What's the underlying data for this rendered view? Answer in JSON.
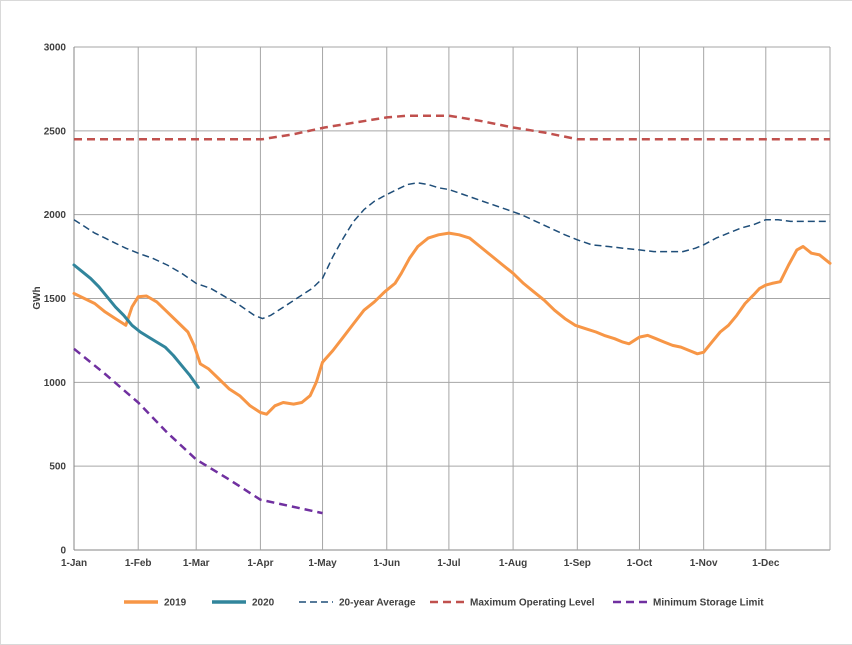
{
  "chart_data": {
    "type": "line",
    "ylabel": "GWh",
    "ylim": [
      0,
      3000
    ],
    "yticks": [
      "0",
      "500",
      "1000",
      "1500",
      "2000",
      "2500",
      "3000"
    ],
    "xlim": [
      0,
      365
    ],
    "xticks": [
      {
        "label": "1-Jan",
        "day": 0
      },
      {
        "label": "1-Feb",
        "day": 31
      },
      {
        "label": "1-Mar",
        "day": 59
      },
      {
        "label": "1-Apr",
        "day": 90
      },
      {
        "label": "1-May",
        "day": 120
      },
      {
        "label": "1-Jun",
        "day": 151
      },
      {
        "label": "1-Jul",
        "day": 181
      },
      {
        "label": "1-Aug",
        "day": 212
      },
      {
        "label": "1-Sep",
        "day": 243
      },
      {
        "label": "1-Oct",
        "day": 273
      },
      {
        "label": "1-Nov",
        "day": 304
      },
      {
        "label": "1-Dec",
        "day": 334
      }
    ],
    "grid": true,
    "legend_position": "bottom",
    "series": [
      {
        "name": "2019",
        "color": "#f79646",
        "style": "solid",
        "points": [
          [
            0,
            1530
          ],
          [
            5,
            1500
          ],
          [
            10,
            1470
          ],
          [
            15,
            1420
          ],
          [
            20,
            1380
          ],
          [
            25,
            1340
          ],
          [
            28,
            1450
          ],
          [
            31,
            1510
          ],
          [
            35,
            1515
          ],
          [
            40,
            1480
          ],
          [
            45,
            1420
          ],
          [
            50,
            1360
          ],
          [
            55,
            1300
          ],
          [
            58,
            1220
          ],
          [
            61,
            1110
          ],
          [
            65,
            1080
          ],
          [
            70,
            1020
          ],
          [
            75,
            960
          ],
          [
            80,
            920
          ],
          [
            85,
            860
          ],
          [
            90,
            820
          ],
          [
            93,
            810
          ],
          [
            97,
            860
          ],
          [
            101,
            880
          ],
          [
            106,
            870
          ],
          [
            110,
            880
          ],
          [
            114,
            920
          ],
          [
            117,
            1000
          ],
          [
            120,
            1120
          ],
          [
            125,
            1190
          ],
          [
            130,
            1270
          ],
          [
            135,
            1350
          ],
          [
            140,
            1430
          ],
          [
            145,
            1480
          ],
          [
            150,
            1540
          ],
          [
            155,
            1590
          ],
          [
            158,
            1650
          ],
          [
            162,
            1740
          ],
          [
            166,
            1810
          ],
          [
            171,
            1860
          ],
          [
            176,
            1880
          ],
          [
            181,
            1890
          ],
          [
            186,
            1880
          ],
          [
            191,
            1860
          ],
          [
            196,
            1810
          ],
          [
            201,
            1760
          ],
          [
            207,
            1700
          ],
          [
            212,
            1650
          ],
          [
            217,
            1590
          ],
          [
            222,
            1540
          ],
          [
            227,
            1490
          ],
          [
            232,
            1430
          ],
          [
            237,
            1380
          ],
          [
            242,
            1340
          ],
          [
            247,
            1320
          ],
          [
            252,
            1300
          ],
          [
            256,
            1280
          ],
          [
            261,
            1260
          ],
          [
            265,
            1240
          ],
          [
            268,
            1230
          ],
          [
            273,
            1270
          ],
          [
            277,
            1280
          ],
          [
            281,
            1260
          ],
          [
            285,
            1240
          ],
          [
            289,
            1220
          ],
          [
            293,
            1210
          ],
          [
            297,
            1190
          ],
          [
            301,
            1170
          ],
          [
            304,
            1180
          ],
          [
            308,
            1240
          ],
          [
            312,
            1300
          ],
          [
            316,
            1340
          ],
          [
            320,
            1400
          ],
          [
            324,
            1470
          ],
          [
            328,
            1520
          ],
          [
            331,
            1560
          ],
          [
            334,
            1580
          ],
          [
            337,
            1590
          ],
          [
            341,
            1600
          ],
          [
            345,
            1700
          ],
          [
            349,
            1790
          ],
          [
            352,
            1810
          ],
          [
            356,
            1770
          ],
          [
            360,
            1760
          ],
          [
            365,
            1710
          ]
        ]
      },
      {
        "name": "2020",
        "color": "#31859c",
        "style": "solid",
        "points": [
          [
            0,
            1700
          ],
          [
            4,
            1660
          ],
          [
            8,
            1620
          ],
          [
            12,
            1570
          ],
          [
            16,
            1510
          ],
          [
            20,
            1450
          ],
          [
            24,
            1400
          ],
          [
            28,
            1340
          ],
          [
            32,
            1300
          ],
          [
            36,
            1270
          ],
          [
            40,
            1240
          ],
          [
            44,
            1210
          ],
          [
            48,
            1160
          ],
          [
            52,
            1100
          ],
          [
            56,
            1040
          ],
          [
            60,
            970
          ]
        ]
      },
      {
        "name": "20-year Average",
        "color": "#1f4e79",
        "style": "dashed",
        "points": [
          [
            0,
            1970
          ],
          [
            5,
            1930
          ],
          [
            10,
            1890
          ],
          [
            15,
            1860
          ],
          [
            20,
            1830
          ],
          [
            25,
            1800
          ],
          [
            31,
            1770
          ],
          [
            38,
            1740
          ],
          [
            45,
            1700
          ],
          [
            52,
            1650
          ],
          [
            59,
            1590
          ],
          [
            66,
            1560
          ],
          [
            73,
            1510
          ],
          [
            80,
            1460
          ],
          [
            87,
            1400
          ],
          [
            91,
            1380
          ],
          [
            95,
            1400
          ],
          [
            100,
            1440
          ],
          [
            105,
            1480
          ],
          [
            110,
            1520
          ],
          [
            115,
            1560
          ],
          [
            120,
            1620
          ],
          [
            125,
            1750
          ],
          [
            130,
            1860
          ],
          [
            135,
            1960
          ],
          [
            140,
            2030
          ],
          [
            145,
            2080
          ],
          [
            151,
            2120
          ],
          [
            156,
            2150
          ],
          [
            161,
            2180
          ],
          [
            166,
            2190
          ],
          [
            171,
            2180
          ],
          [
            176,
            2160
          ],
          [
            181,
            2150
          ],
          [
            188,
            2120
          ],
          [
            195,
            2090
          ],
          [
            202,
            2060
          ],
          [
            209,
            2030
          ],
          [
            216,
            2000
          ],
          [
            223,
            1960
          ],
          [
            230,
            1920
          ],
          [
            237,
            1880
          ],
          [
            243,
            1850
          ],
          [
            250,
            1820
          ],
          [
            258,
            1810
          ],
          [
            265,
            1800
          ],
          [
            273,
            1790
          ],
          [
            280,
            1780
          ],
          [
            287,
            1780
          ],
          [
            294,
            1780
          ],
          [
            300,
            1800
          ],
          [
            304,
            1820
          ],
          [
            310,
            1860
          ],
          [
            316,
            1890
          ],
          [
            322,
            1920
          ],
          [
            328,
            1940
          ],
          [
            334,
            1970
          ],
          [
            340,
            1970
          ],
          [
            346,
            1960
          ],
          [
            352,
            1960
          ],
          [
            358,
            1960
          ],
          [
            365,
            1960
          ]
        ]
      },
      {
        "name": "Maximum Operating Level",
        "color": "#c0504d",
        "style": "dashed",
        "points": [
          [
            0,
            2450
          ],
          [
            91,
            2450
          ],
          [
            106,
            2480
          ],
          [
            121,
            2520
          ],
          [
            136,
            2550
          ],
          [
            151,
            2580
          ],
          [
            161,
            2590
          ],
          [
            181,
            2590
          ],
          [
            196,
            2560
          ],
          [
            212,
            2520
          ],
          [
            227,
            2490
          ],
          [
            243,
            2450
          ],
          [
            365,
            2450
          ]
        ]
      },
      {
        "name": "Minimum Storage Limit",
        "color": "#7030a0",
        "style": "dashed",
        "points": [
          [
            0,
            1200
          ],
          [
            15,
            1050
          ],
          [
            31,
            880
          ],
          [
            45,
            700
          ],
          [
            59,
            540
          ],
          [
            75,
            420
          ],
          [
            90,
            300
          ],
          [
            105,
            260
          ],
          [
            120,
            220
          ]
        ]
      }
    ]
  }
}
